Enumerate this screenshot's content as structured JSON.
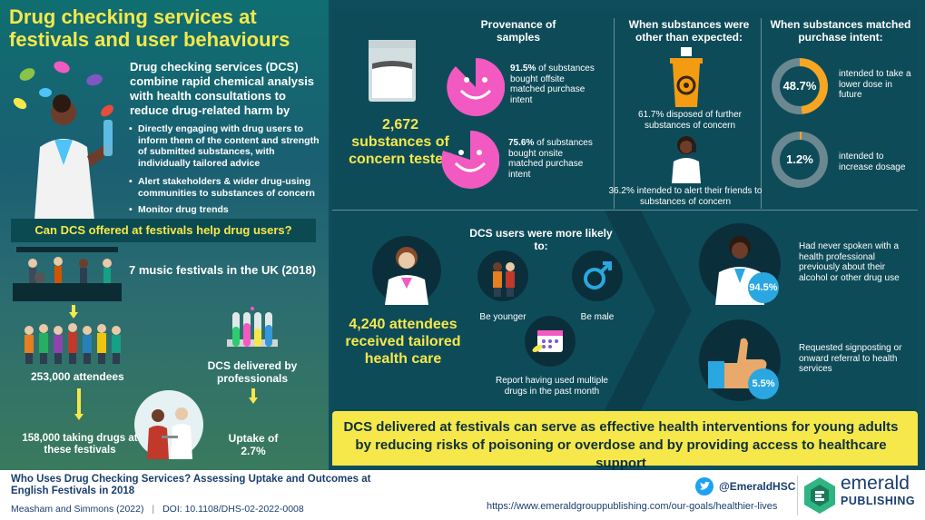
{
  "title": "Drug checking services at festivals and user behaviours",
  "intro": {
    "lead": "Drug checking services (DCS) combine rapid chemical analysis with health consultations to reduce drug-related harm by",
    "bullets": [
      "Directly engaging with drug users to inform them of the content and strength of submitted substances, with individually tailored advice",
      "Alert stakeholders & wider drug-using communities to substances of concern",
      "Monitor drug trends"
    ]
  },
  "question": "Can DCS offered at festivals help drug users?",
  "festivals": {
    "count_text": "7 music festivals in the UK (2018)",
    "attendees": "253,000 attendees",
    "taking": "158,000 taking drugs at these festivals",
    "dcs": "DCS delivered by professionals",
    "uptake": "Uptake of 2.7%"
  },
  "samples": {
    "total": "2,672 substances of concern tested",
    "provenance_header": "Provenance of samples",
    "offsite_pct": "91.5%",
    "offsite_text": "of substances bought offsite matched purchase intent",
    "onsite_pct": "75.6%",
    "onsite_text": "of substances bought onsite matched purchase intent"
  },
  "other_than_expected": {
    "header": "When substances were other than expected:",
    "disposed": "61.7% disposed of further substances of concern",
    "alert": "36.2% intended to alert their friends to substances of concern"
  },
  "matched_intent": {
    "header": "When substances matched purchase intent:",
    "lower_pct": "48.7%",
    "lower_text": "intended to take a lower dose in future",
    "increase_pct": "1.2%",
    "increase_text": "intended to increase dosage"
  },
  "health": {
    "attendees": "4,240 attendees received tailored health care",
    "likely_header": "DCS users were more likely to:",
    "younger": "Be younger",
    "male": "Be male",
    "multiple": "Report having used multiple drugs in the past month",
    "spoken_pct": "94.5%",
    "spoken_text": "Had never spoken with a health professional previously about their alcohol or other drug use",
    "signpost_pct": "5.5%",
    "signpost_text": "Requested signposting or onward referral to health services"
  },
  "conclusion": "DCS delivered at festivals can serve as effective health interventions for young adults by reducing risks of poisoning or overdose and by providing access to healthcare support",
  "footer": {
    "paper_title": "Who Uses Drug Checking Services? Assessing Uptake and Outcomes at English Festivals in 2018",
    "authors": "Measham and Simmons (2022)",
    "doi": "DOI: 10.1108/DHS-02-2022-0008",
    "twitter": "@EmeraldHSC",
    "url": "https://www.emeraldgrouppublishing.com/our-goals/healthier-lives",
    "brand_top": "emerald",
    "brand_bottom": "PUBLISHING"
  },
  "chart_data": {
    "type": "pie",
    "title": "When substances matched purchase intent",
    "labels": [
      "intended to take a lower dose in future",
      "intended to increase dosage"
    ],
    "values": [
      48.7,
      1.2
    ]
  },
  "colors": {
    "accent_yellow": "#f6e84a",
    "pink": "#f25ac2",
    "teal_dark": "#0e4b59",
    "blue": "#2aa7e0"
  }
}
